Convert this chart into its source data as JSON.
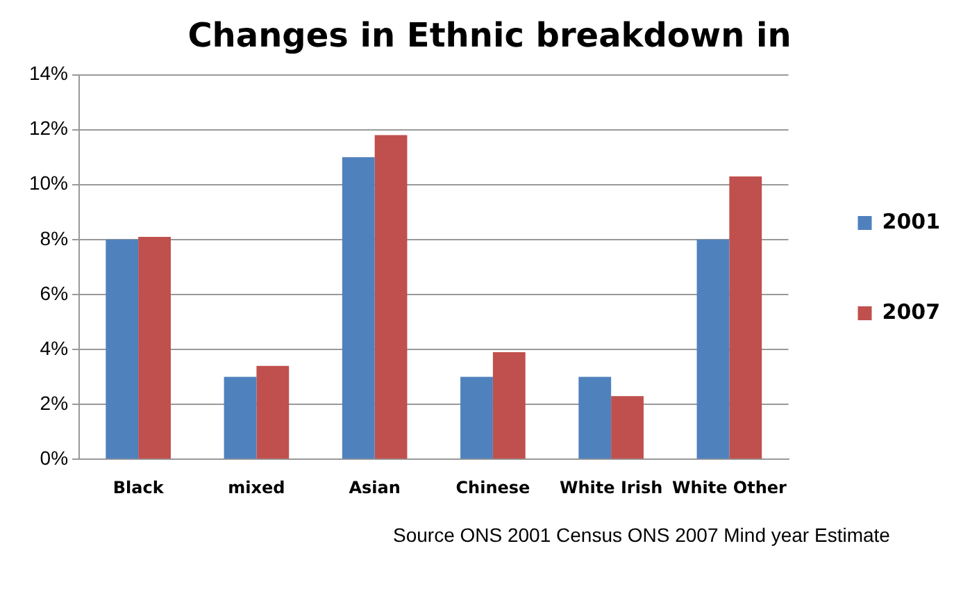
{
  "chart_data": {
    "type": "bar",
    "title": "Changes in Ethnic breakdown in",
    "categories": [
      "Black",
      "mixed",
      "Asian",
      "Chinese",
      "White Irish",
      "White Other"
    ],
    "series": [
      {
        "name": "2001",
        "color": "#4f81bd",
        "values": [
          8,
          3,
          11,
          3,
          3,
          8
        ]
      },
      {
        "name": "2007",
        "color": "#c0504d",
        "values": [
          8.1,
          3.4,
          11.8,
          3.9,
          2.3,
          10.3
        ]
      }
    ],
    "ylim": [
      0,
      14
    ],
    "yticks": [
      {
        "value": 0,
        "label": "0%"
      },
      {
        "value": 2,
        "label": "2%"
      },
      {
        "value": 4,
        "label": "4%"
      },
      {
        "value": 6,
        "label": "6%"
      },
      {
        "value": 8,
        "label": "8%"
      },
      {
        "value": 10,
        "label": "10%"
      },
      {
        "value": 12,
        "label": "12%"
      },
      {
        "value": 14,
        "label": "14%"
      }
    ],
    "grid": "y",
    "legend": "right",
    "annotations": [
      "Source ONS 2001 Census  ONS 2007 Mind year Estimate"
    ]
  }
}
